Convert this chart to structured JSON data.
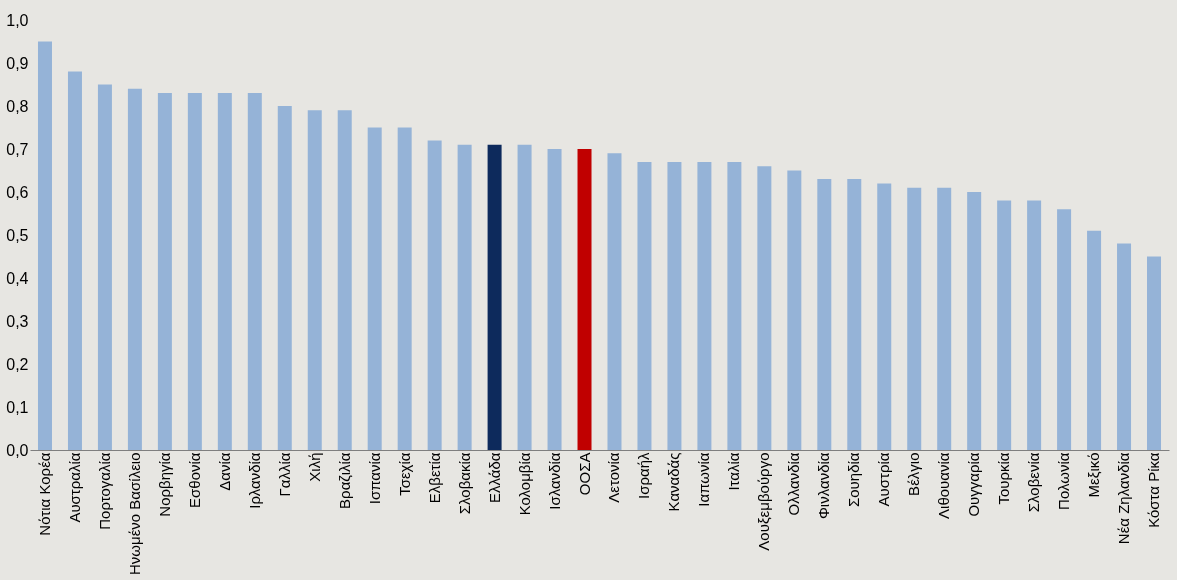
{
  "chart_data": {
    "type": "bar",
    "categories": [
      "Νότια Κορέα",
      "Αυστραλία",
      "Πορτογαλία",
      "Ηνωμένο Βασίλειο",
      "Νορβηγία",
      "Εσθονία",
      "Δανία",
      "Ιρλανδία",
      "Γαλλία",
      "Χιλή",
      "Βραζιλία",
      "Ισπανία",
      "Τσεχία",
      "Ελβετία",
      "Σλοβακία",
      "Ελλάδα",
      "Κολομβία",
      "Ισλανδία",
      "ΟΟΣΑ",
      "Λετονία",
      "Ισραήλ",
      "Καναδάς",
      "Ιαπωνία",
      "Ιταλία",
      "Λουξεμβούργο",
      "Ολλανδία",
      "Φινλανδία",
      "Σουηδία",
      "Αυστρία",
      "Βέλγιο",
      "Λιθουανία",
      "Ουγγαρία",
      "Τουρκία",
      "Σλοβενία",
      "Πολωνία",
      "Μεξικό",
      "Νέα Ζηλανδία",
      "Κόστα Ρίκα"
    ],
    "values": [
      0.95,
      0.88,
      0.85,
      0.84,
      0.83,
      0.83,
      0.83,
      0.83,
      0.8,
      0.79,
      0.79,
      0.75,
      0.75,
      0.72,
      0.71,
      0.71,
      0.71,
      0.7,
      0.7,
      0.69,
      0.67,
      0.67,
      0.67,
      0.67,
      0.66,
      0.65,
      0.63,
      0.63,
      0.62,
      0.61,
      0.61,
      0.6,
      0.58,
      0.58,
      0.56,
      0.51,
      0.48,
      0.45
    ],
    "colors": [
      "#95b3d7",
      "#95b3d7",
      "#95b3d7",
      "#95b3d7",
      "#95b3d7",
      "#95b3d7",
      "#95b3d7",
      "#95b3d7",
      "#95b3d7",
      "#95b3d7",
      "#95b3d7",
      "#95b3d7",
      "#95b3d7",
      "#95b3d7",
      "#95b3d7",
      "#0d2a5c",
      "#95b3d7",
      "#95b3d7",
      "#c00000",
      "#95b3d7",
      "#95b3d7",
      "#95b3d7",
      "#95b3d7",
      "#95b3d7",
      "#95b3d7",
      "#95b3d7",
      "#95b3d7",
      "#95b3d7",
      "#95b3d7",
      "#95b3d7",
      "#95b3d7",
      "#95b3d7",
      "#95b3d7",
      "#95b3d7",
      "#95b3d7",
      "#95b3d7",
      "#95b3d7",
      "#95b3d7"
    ],
    "ylim": [
      0,
      1.0
    ],
    "yticks": [
      {
        "value": 0,
        "label": "0,0"
      },
      {
        "value": 0.1,
        "label": "0,1"
      },
      {
        "value": 0.2,
        "label": "0,2"
      },
      {
        "value": 0.3,
        "label": "0,3"
      },
      {
        "value": 0.4,
        "label": "0,4"
      },
      {
        "value": 0.5,
        "label": "0,5"
      },
      {
        "value": 0.6,
        "label": "0,6"
      },
      {
        "value": 0.7,
        "label": "0,7"
      },
      {
        "value": 0.8,
        "label": "0,8"
      },
      {
        "value": 0.9,
        "label": "0,9"
      },
      {
        "value": 1.0,
        "label": "1,0"
      }
    ],
    "grid": false
  }
}
